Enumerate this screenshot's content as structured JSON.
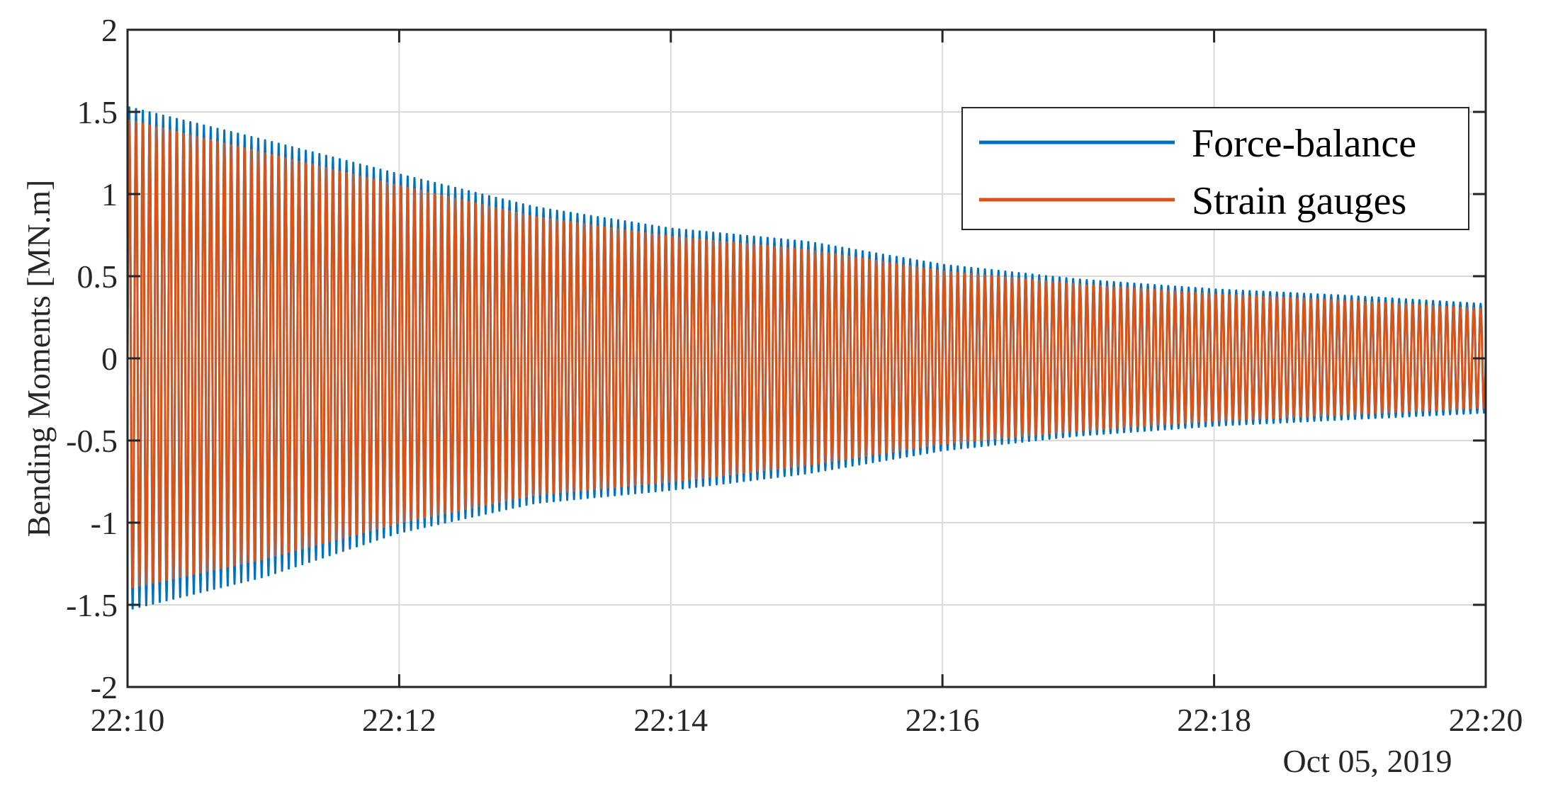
{
  "chart_data": {
    "type": "line",
    "title": "",
    "xlabel": "",
    "ylabel": "Bending Moments [MN.m]",
    "x_tick_labels": [
      "22:10",
      "22:12",
      "22:14",
      "22:16",
      "22:18",
      "22:20"
    ],
    "x_secondary_label": "Oct 05, 2019",
    "x_range": [
      "22:10",
      "22:20"
    ],
    "ylim": [
      -2,
      2
    ],
    "y_ticks": [
      2,
      1.5,
      1,
      0.5,
      0,
      -0.5,
      -1,
      -1.5,
      -2
    ],
    "y_tick_labels": [
      "2",
      "1.5",
      "1",
      "0.5",
      "0",
      "-0.5",
      "-1",
      "-1.5",
      "-2"
    ],
    "grid": true,
    "legend_position": "top-right",
    "signal": {
      "oscillation_cycles": 200,
      "sampled_time_minutes": [
        0,
        1,
        2,
        3,
        4,
        5,
        6,
        7,
        8,
        9,
        10
      ]
    },
    "series": [
      {
        "name": "Force-balance",
        "color": "#0072bd",
        "envelope_upper": [
          1.53,
          1.33,
          1.12,
          0.92,
          0.79,
          0.71,
          0.57,
          0.48,
          0.42,
          0.38,
          0.33
        ],
        "envelope_lower": [
          -1.53,
          -1.33,
          -1.06,
          -0.88,
          -0.8,
          -0.7,
          -0.56,
          -0.47,
          -0.41,
          -0.37,
          -0.33
        ]
      },
      {
        "name": "Strain gauges",
        "color": "#d95319",
        "envelope_upper": [
          1.45,
          1.25,
          1.05,
          0.86,
          0.74,
          0.66,
          0.53,
          0.45,
          0.39,
          0.35,
          0.3
        ],
        "envelope_lower": [
          -1.4,
          -1.22,
          -1.0,
          -0.83,
          -0.75,
          -0.65,
          -0.52,
          -0.44,
          -0.38,
          -0.34,
          -0.3
        ]
      }
    ]
  }
}
